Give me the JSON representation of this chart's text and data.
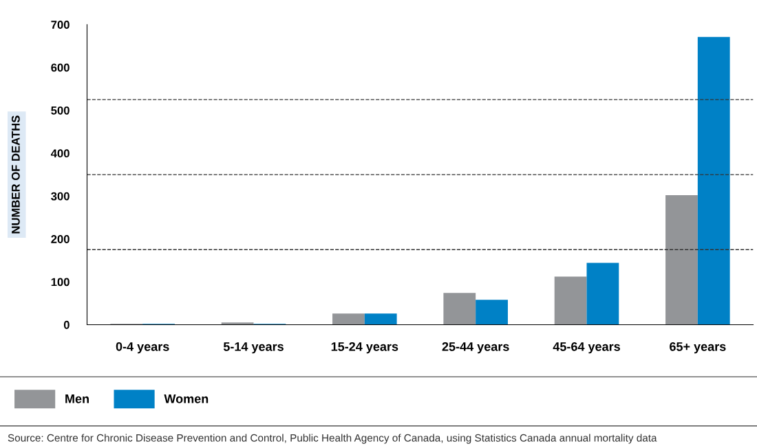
{
  "chart_data": {
    "type": "bar",
    "ylabel": "NUMBER OF DEATHS",
    "categories": [
      "0-4 years",
      "5-14 years",
      "15-24 years",
      "25-44 years",
      "45-64 years",
      "65+ years"
    ],
    "series": [
      {
        "name": "Men",
        "color": "#939598",
        "values": [
          2,
          5,
          26,
          74,
          112,
          302
        ]
      },
      {
        "name": "Women",
        "color": "#0081c6",
        "values": [
          2,
          2,
          26,
          58,
          144,
          671
        ]
      }
    ],
    "ylim": [
      0,
      700
    ],
    "yticks": [
      0,
      100,
      200,
      300,
      400,
      500,
      600,
      700
    ],
    "ref_lines": [
      {
        "axis": "y",
        "value": 175,
        "line_style": "dashed",
        "color": "#333333"
      },
      {
        "axis": "y",
        "value": 350,
        "line_style": "dashed",
        "color": "#333333"
      },
      {
        "axis": "y",
        "value": 525,
        "line_style": "dashed",
        "color": "#333333"
      }
    ],
    "grid": false,
    "legend": "bottom left",
    "annotations": [
      "Source: Centre for Chronic Disease Prevention and Control, Public Health Agency of Canada, using Statistics Canada annual mortality data"
    ]
  }
}
